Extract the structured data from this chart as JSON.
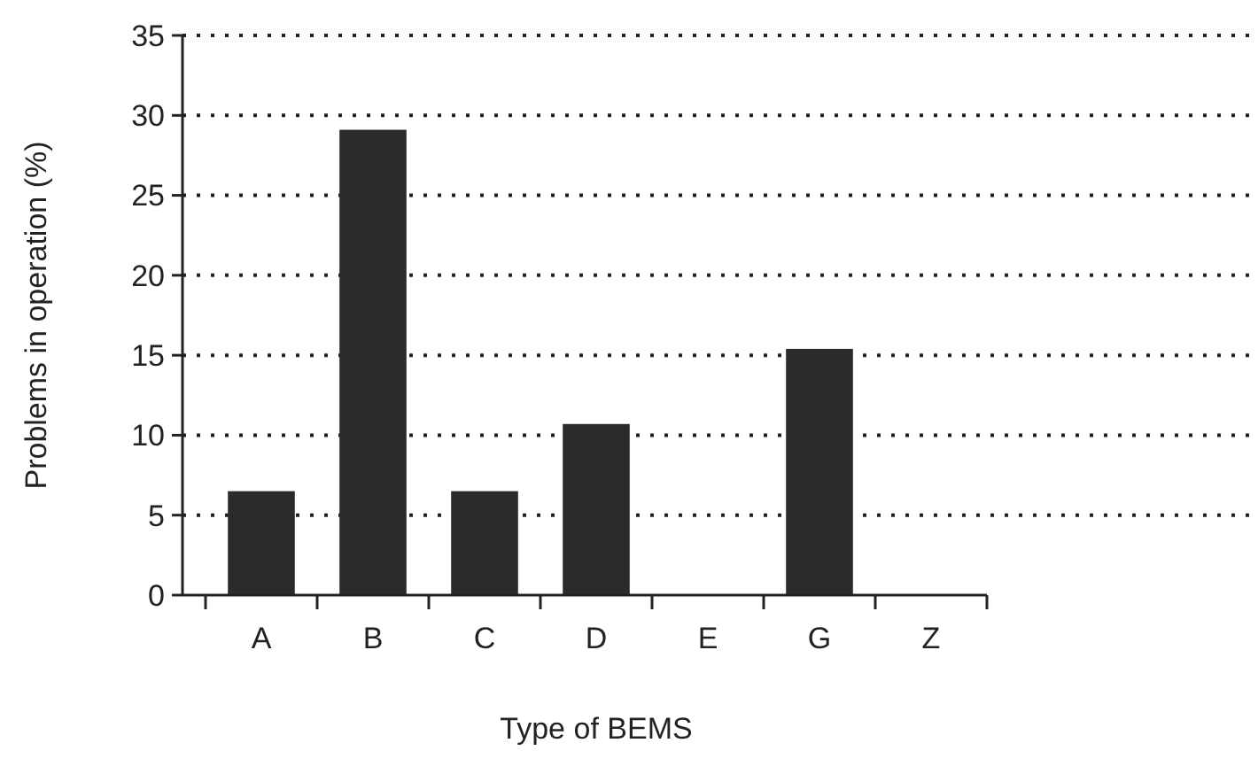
{
  "chart_data": {
    "type": "bar",
    "xlabel": "Type of BEMS",
    "ylabel": "Problems in operation (%)",
    "categories": [
      "A",
      "B",
      "C",
      "D",
      "E",
      "G",
      "Z"
    ],
    "values": [
      6.5,
      29.1,
      6.5,
      10.7,
      0,
      15.4,
      0
    ],
    "color": "#2b2b2b",
    "ylim": [
      0,
      35
    ],
    "yticks": [
      0,
      5,
      10,
      15,
      20,
      25,
      30,
      35
    ],
    "grid": "y"
  }
}
